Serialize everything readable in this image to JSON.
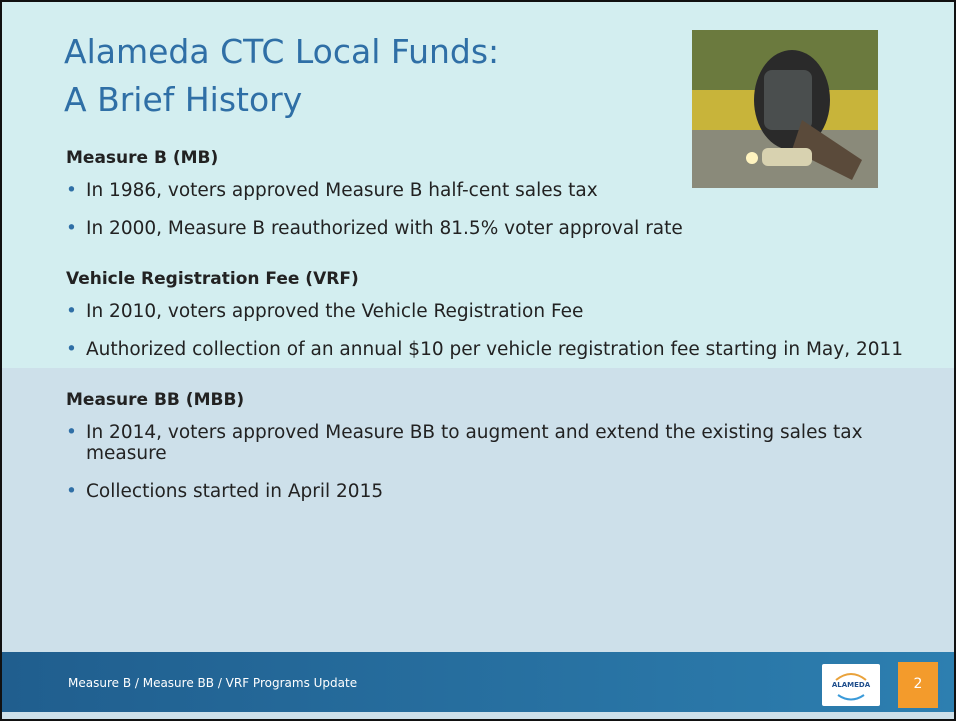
{
  "slide": {
    "title": [
      "Alameda CTC Local Funds:",
      "A Brief History"
    ],
    "sections": [
      {
        "heading": "Measure B (MB)",
        "bullets": [
          "In 1986, voters approved Measure B half-cent sales tax",
          "In 2000, Measure B reauthorized with 81.5% voter approval rate"
        ]
      },
      {
        "heading": "Vehicle Registration Fee (VRF)",
        "bullets": [
          "In 2010, voters approved the Vehicle Registration Fee",
          "Authorized collection of an annual $10 per vehicle registration fee starting in May, 2011"
        ]
      },
      {
        "heading": "Measure BB (MBB)",
        "bullets": [
          "In 2014, voters approved Measure BB to augment and extend the existing sales tax measure",
          "Collections started in April 2015"
        ]
      }
    ],
    "footer": "Measure B / Measure BB / VRF Programs Update",
    "logo": "ALAMEDA",
    "page_number": "2"
  }
}
